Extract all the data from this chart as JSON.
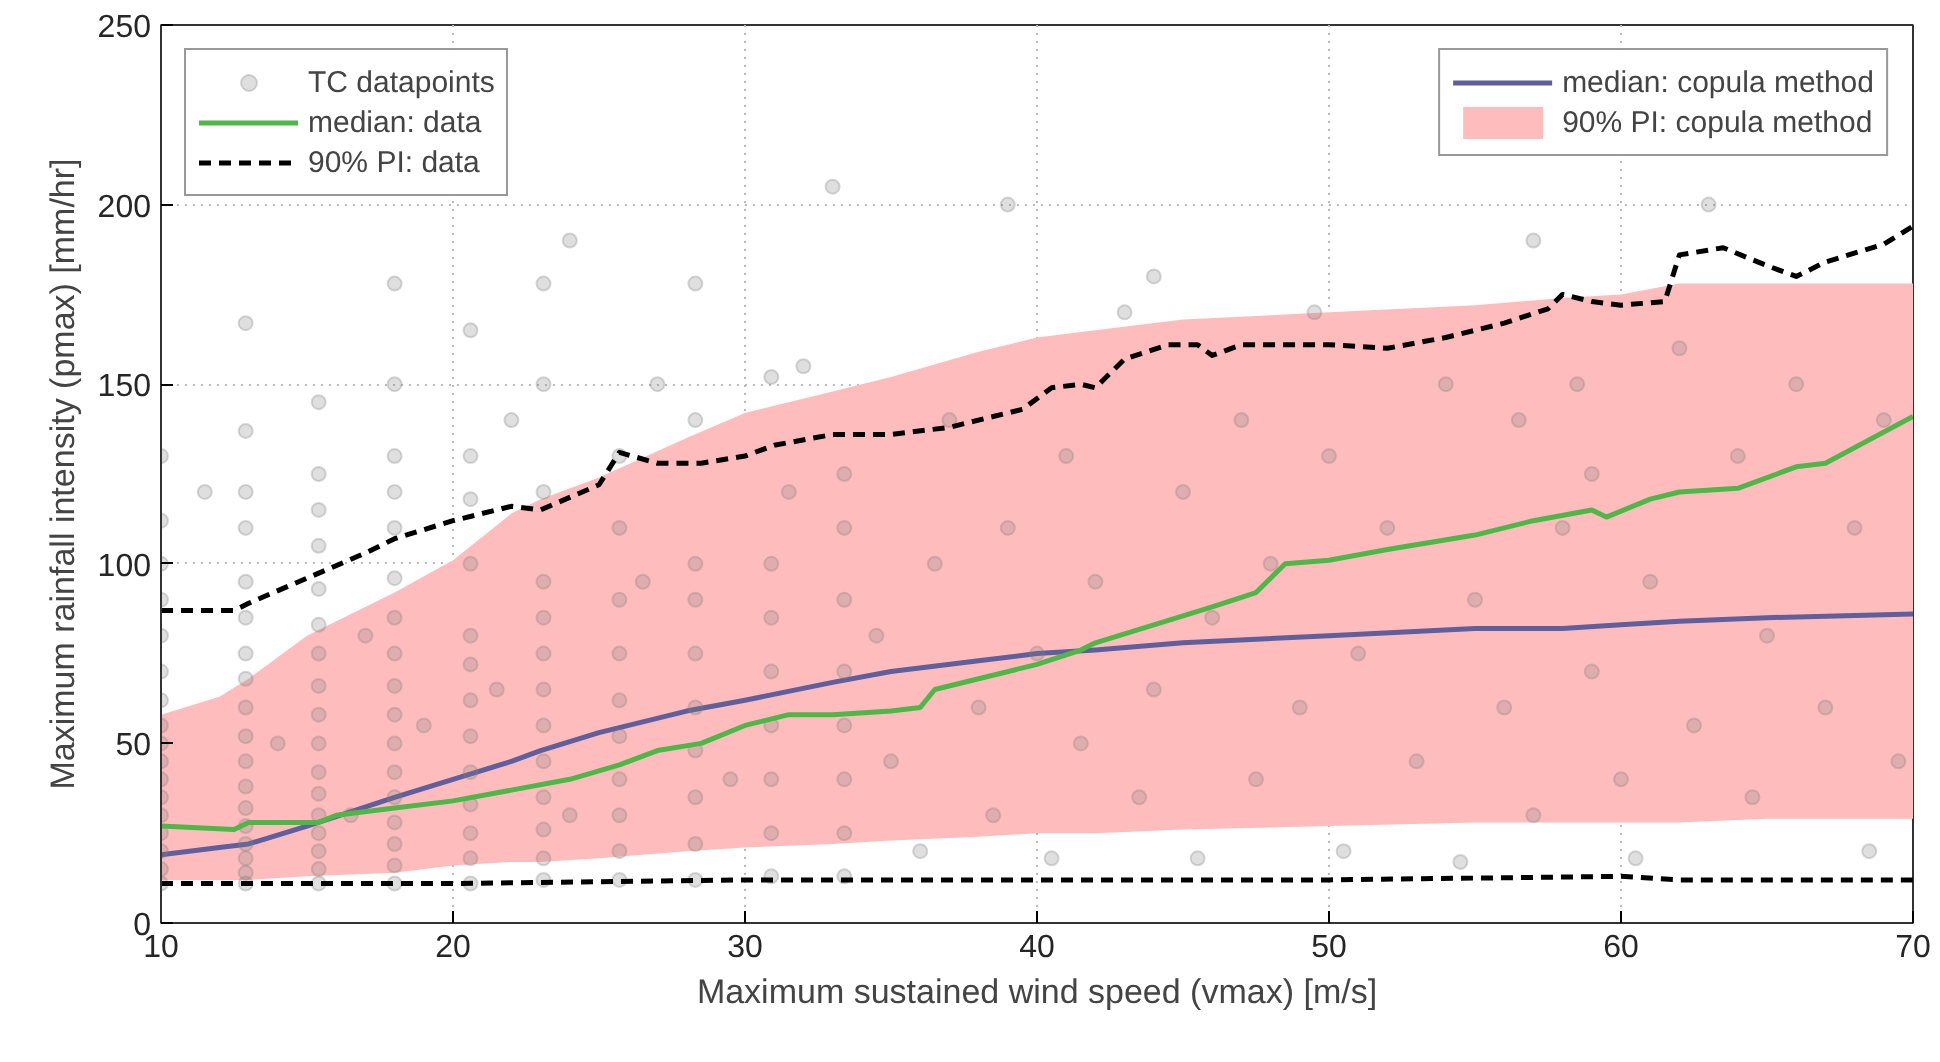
{
  "chart_data": {
    "type": "line",
    "xlabel": "Maximum sustained wind speed (vmax) [m/s]",
    "ylabel": "Maximum rainfall intensity (pmax) [mm/hr]",
    "xlim": [
      10,
      70
    ],
    "ylim": [
      0,
      250
    ],
    "xticks": [
      10,
      20,
      30,
      40,
      50,
      60,
      70
    ],
    "yticks": [
      0,
      50,
      100,
      150,
      200,
      250
    ],
    "grid": true,
    "legend": "top left",
    "series": [
      {
        "name": "median: copula method",
        "color": "#5e5f9c",
        "x": [
          10,
          12,
          13,
          15,
          18,
          20,
          22,
          23,
          25,
          28,
          30,
          33,
          35,
          38,
          40,
          42,
          45,
          50,
          55,
          58,
          60,
          62,
          65,
          70
        ],
        "values": [
          19,
          21,
          22,
          27,
          35,
          40,
          45,
          48,
          53,
          59,
          62,
          67,
          70,
          73,
          75,
          76,
          78,
          80,
          82,
          82,
          83,
          84,
          85,
          86
        ],
        "lower": [
          12,
          12,
          12,
          13,
          14,
          16,
          17,
          17,
          18,
          20,
          21,
          22,
          23,
          24,
          25,
          25,
          26,
          27,
          28,
          28,
          28,
          28,
          29,
          29
        ],
        "upper": [
          58,
          63,
          68,
          80,
          92,
          101,
          114,
          118,
          124,
          135,
          142,
          148,
          152,
          159,
          163,
          165,
          168,
          170,
          172,
          174,
          175,
          178,
          178,
          178
        ]
      },
      {
        "name": "90% PI: copula method",
        "type": "area",
        "color": "#ffbcbc"
      },
      {
        "name": "TC datapoints",
        "type": "scatter",
        "color": "#808080",
        "marker": "circle",
        "x": [
          10,
          10,
          10,
          10,
          10,
          10,
          10,
          10,
          10,
          10,
          10,
          10,
          10,
          10,
          10,
          10,
          10,
          12.9,
          12.9,
          12.9,
          12.9,
          12.9,
          12.9,
          12.9,
          12.9,
          12.9,
          12.9,
          12.9,
          12.9,
          12.9,
          12.9,
          12.9,
          12.9,
          12.9,
          12.9,
          15.4,
          15.4,
          15.4,
          15.4,
          15.4,
          15.4,
          15.4,
          15.4,
          15.4,
          15.4,
          15.4,
          15.4,
          15.4,
          15.4,
          15.4,
          15.4,
          15.4,
          18,
          18,
          18,
          18,
          18,
          18,
          18,
          18,
          18,
          18,
          18,
          18,
          18,
          18,
          18,
          18,
          18,
          20.6,
          20.6,
          20.6,
          20.6,
          20.6,
          20.6,
          20.6,
          20.6,
          20.6,
          20.6,
          20.6,
          20.6,
          20.6,
          23.1,
          23.1,
          23.1,
          23.1,
          23.1,
          23.1,
          23.1,
          23.1,
          23.1,
          23.1,
          23.1,
          23.1,
          23.1,
          25.7,
          25.7,
          25.7,
          25.7,
          25.7,
          25.7,
          25.7,
          25.7,
          25.7,
          25.7,
          28.3,
          28.3,
          28.3,
          28.3,
          28.3,
          28.3,
          28.3,
          28.3,
          28.3,
          28.3,
          30.9,
          30.9,
          30.9,
          30.9,
          30.9,
          30.9,
          30.9,
          30.9,
          33.4,
          33.4,
          33.4,
          33.4,
          33.4,
          33.4,
          33.4,
          33.4,
          11.5,
          14,
          16.5,
          17,
          19,
          21.5,
          22,
          24,
          26.5,
          27,
          29.5,
          31.5,
          32,
          34.5,
          35,
          36,
          36.5,
          37,
          38,
          38.5,
          39,
          40,
          40.5,
          41,
          41.5,
          42,
          43,
          43.5,
          44,
          45,
          45.5,
          46,
          47,
          47.5,
          48,
          49,
          49.5,
          50,
          50.5,
          51,
          52,
          53,
          54,
          54.5,
          55,
          56,
          56.5,
          57,
          58,
          58.5,
          59,
          59,
          60,
          60.5,
          61,
          62,
          62.5,
          63,
          64,
          64.5,
          65,
          66,
          67,
          68,
          68.5,
          69,
          69.5,
          44,
          39,
          33,
          24,
          57
        ],
        "values": [
          11,
          15,
          20,
          25,
          30,
          35,
          40,
          45,
          50,
          55,
          62,
          70,
          80,
          90,
          100,
          112,
          130,
          11,
          14,
          18,
          22,
          27,
          32,
          38,
          45,
          52,
          60,
          68,
          75,
          85,
          95,
          110,
          120,
          137,
          167,
          11,
          15,
          20,
          25,
          30,
          36,
          42,
          50,
          58,
          66,
          75,
          83,
          93,
          105,
          115,
          125,
          145,
          11,
          16,
          22,
          28,
          35,
          42,
          50,
          58,
          66,
          75,
          85,
          96,
          110,
          120,
          130,
          150,
          178,
          11,
          18,
          25,
          33,
          42,
          52,
          62,
          72,
          80,
          100,
          118,
          130,
          165,
          12,
          18,
          26,
          35,
          45,
          55,
          65,
          75,
          85,
          95,
          120,
          150,
          178,
          12,
          20,
          30,
          40,
          52,
          62,
          75,
          90,
          110,
          130,
          12,
          22,
          35,
          48,
          60,
          75,
          90,
          100,
          140,
          178,
          13,
          25,
          40,
          55,
          70,
          85,
          100,
          152,
          13,
          25,
          40,
          55,
          70,
          90,
          110,
          125,
          120,
          50,
          30,
          80,
          55,
          65,
          140,
          30,
          95,
          150,
          40,
          120,
          155,
          80,
          45,
          20,
          100,
          140,
          60,
          30,
          110,
          75,
          18,
          130,
          50,
          95,
          170,
          35,
          65,
          120,
          18,
          85,
          140,
          40,
          100,
          60,
          170,
          130,
          20,
          75,
          110,
          45,
          150,
          17,
          90,
          60,
          140,
          30,
          110,
          150,
          70,
          125,
          40,
          18,
          95,
          160,
          55,
          200,
          130,
          35,
          80,
          150,
          60,
          110,
          20,
          140,
          45,
          180,
          200,
          205,
          190,
          190
        ]
      },
      {
        "name": "median: data",
        "color": "#4db848",
        "x": [
          10,
          12.5,
          13,
          15.4,
          16,
          18,
          20,
          22,
          24,
          25.7,
          27,
          28.5,
          30,
          31.5,
          33,
          35,
          36,
          36.5,
          38,
          40,
          41.5,
          42,
          44,
          46,
          47.5,
          48.5,
          50,
          52,
          55,
          57,
          59,
          59.5,
          61,
          62,
          64,
          66,
          67,
          70
        ],
        "values": [
          27,
          26,
          28,
          28,
          30,
          32,
          34,
          37,
          40,
          44,
          48,
          50,
          55,
          58,
          58,
          59,
          60,
          65,
          68,
          72,
          76,
          78,
          83,
          88,
          92,
          100,
          101,
          104,
          108,
          112,
          115,
          113,
          118,
          120,
          121,
          127,
          128,
          141
        ]
      },
      {
        "name": "90% PI: data",
        "color": "#000000",
        "line_style": "dashed",
        "x": [
          10,
          12.5,
          13,
          15,
          17,
          18,
          20,
          22,
          23,
          25,
          25.7,
          27,
          28.5,
          30,
          31,
          33,
          35,
          37,
          38.5,
          39.5,
          40.5,
          41.5,
          42,
          43,
          44.5,
          45.5,
          46,
          47,
          50,
          52,
          54,
          56,
          57.5,
          58,
          59,
          60,
          61.5,
          62,
          63.5,
          65,
          66,
          67,
          69,
          70
        ],
        "values": [
          87,
          87,
          89,
          96,
          103,
          107,
          112,
          116,
          115,
          122,
          131,
          128,
          128,
          130,
          133,
          136,
          136,
          138,
          141,
          143,
          149,
          150,
          149,
          157,
          161,
          161,
          158,
          161,
          161,
          160,
          163,
          167,
          171,
          175,
          173,
          172,
          173,
          186,
          188,
          183,
          180,
          184,
          189,
          194
        ]
      },
      {
        "color": "#000000",
        "line_style": "dashed",
        "x": [
          10,
          20,
          30,
          40,
          50,
          60,
          62,
          70
        ],
        "values": [
          11,
          11,
          12,
          12,
          12,
          13,
          12,
          12
        ]
      }
    ]
  }
}
